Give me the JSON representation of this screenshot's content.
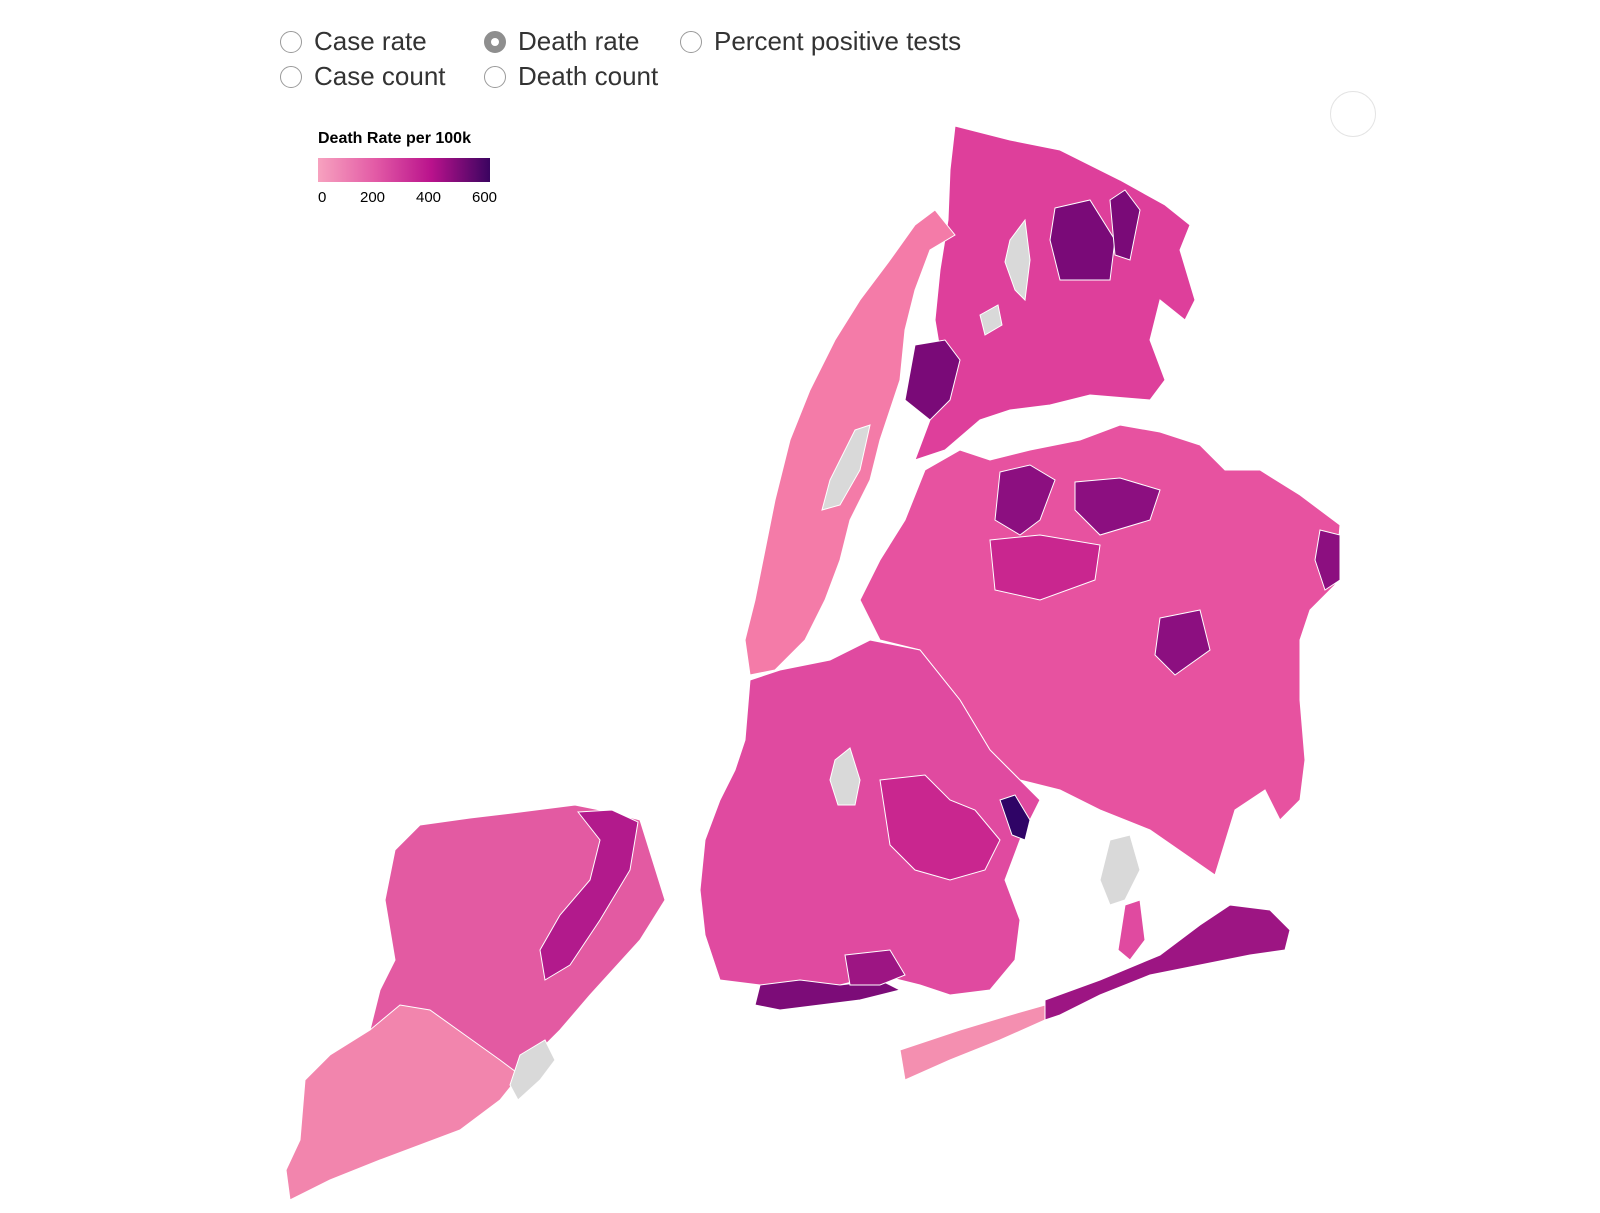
{
  "controls": {
    "options": [
      {
        "label": "Case rate",
        "selected": false
      },
      {
        "label": "Death rate",
        "selected": true
      },
      {
        "label": "Percent positive tests",
        "selected": false
      },
      {
        "label": "Case count",
        "selected": false
      },
      {
        "label": "Death count",
        "selected": false
      }
    ]
  },
  "legend": {
    "title": "Death Rate per 100k",
    "ticks": [
      "0",
      "200",
      "400",
      "600"
    ],
    "colors": [
      "#f7a2bf",
      "#e35ba6",
      "#b9128c",
      "#3a0460"
    ]
  },
  "map": {
    "no_data_color": "#d9d9d9",
    "boundary_color": "#ffffff",
    "regions": {
      "staten_island": {
        "fill": "#e35aa2"
      },
      "si_south": {
        "fill": "#f285ad"
      },
      "si_north_shore": {
        "fill": "#b21a8c"
      },
      "manhattan": {
        "fill": "#f47ba8"
      },
      "bronx": {
        "fill": "#de3f9b"
      },
      "bronx_hot": {
        "fill": "#7a0a78"
      },
      "queens": {
        "fill": "#e752a0"
      },
      "queens_hot": {
        "fill": "#8c0f80"
      },
      "brooklyn": {
        "fill": "#e04aa0"
      },
      "brooklyn_south": {
        "fill": "#c9268f"
      },
      "coney_island": {
        "fill": "#7c0c78"
      },
      "rockaway": {
        "fill": "#9d1583"
      },
      "rockaway_west": {
        "fill": "#f48fb0"
      },
      "darkest": {
        "fill": "#2f0466"
      }
    }
  }
}
